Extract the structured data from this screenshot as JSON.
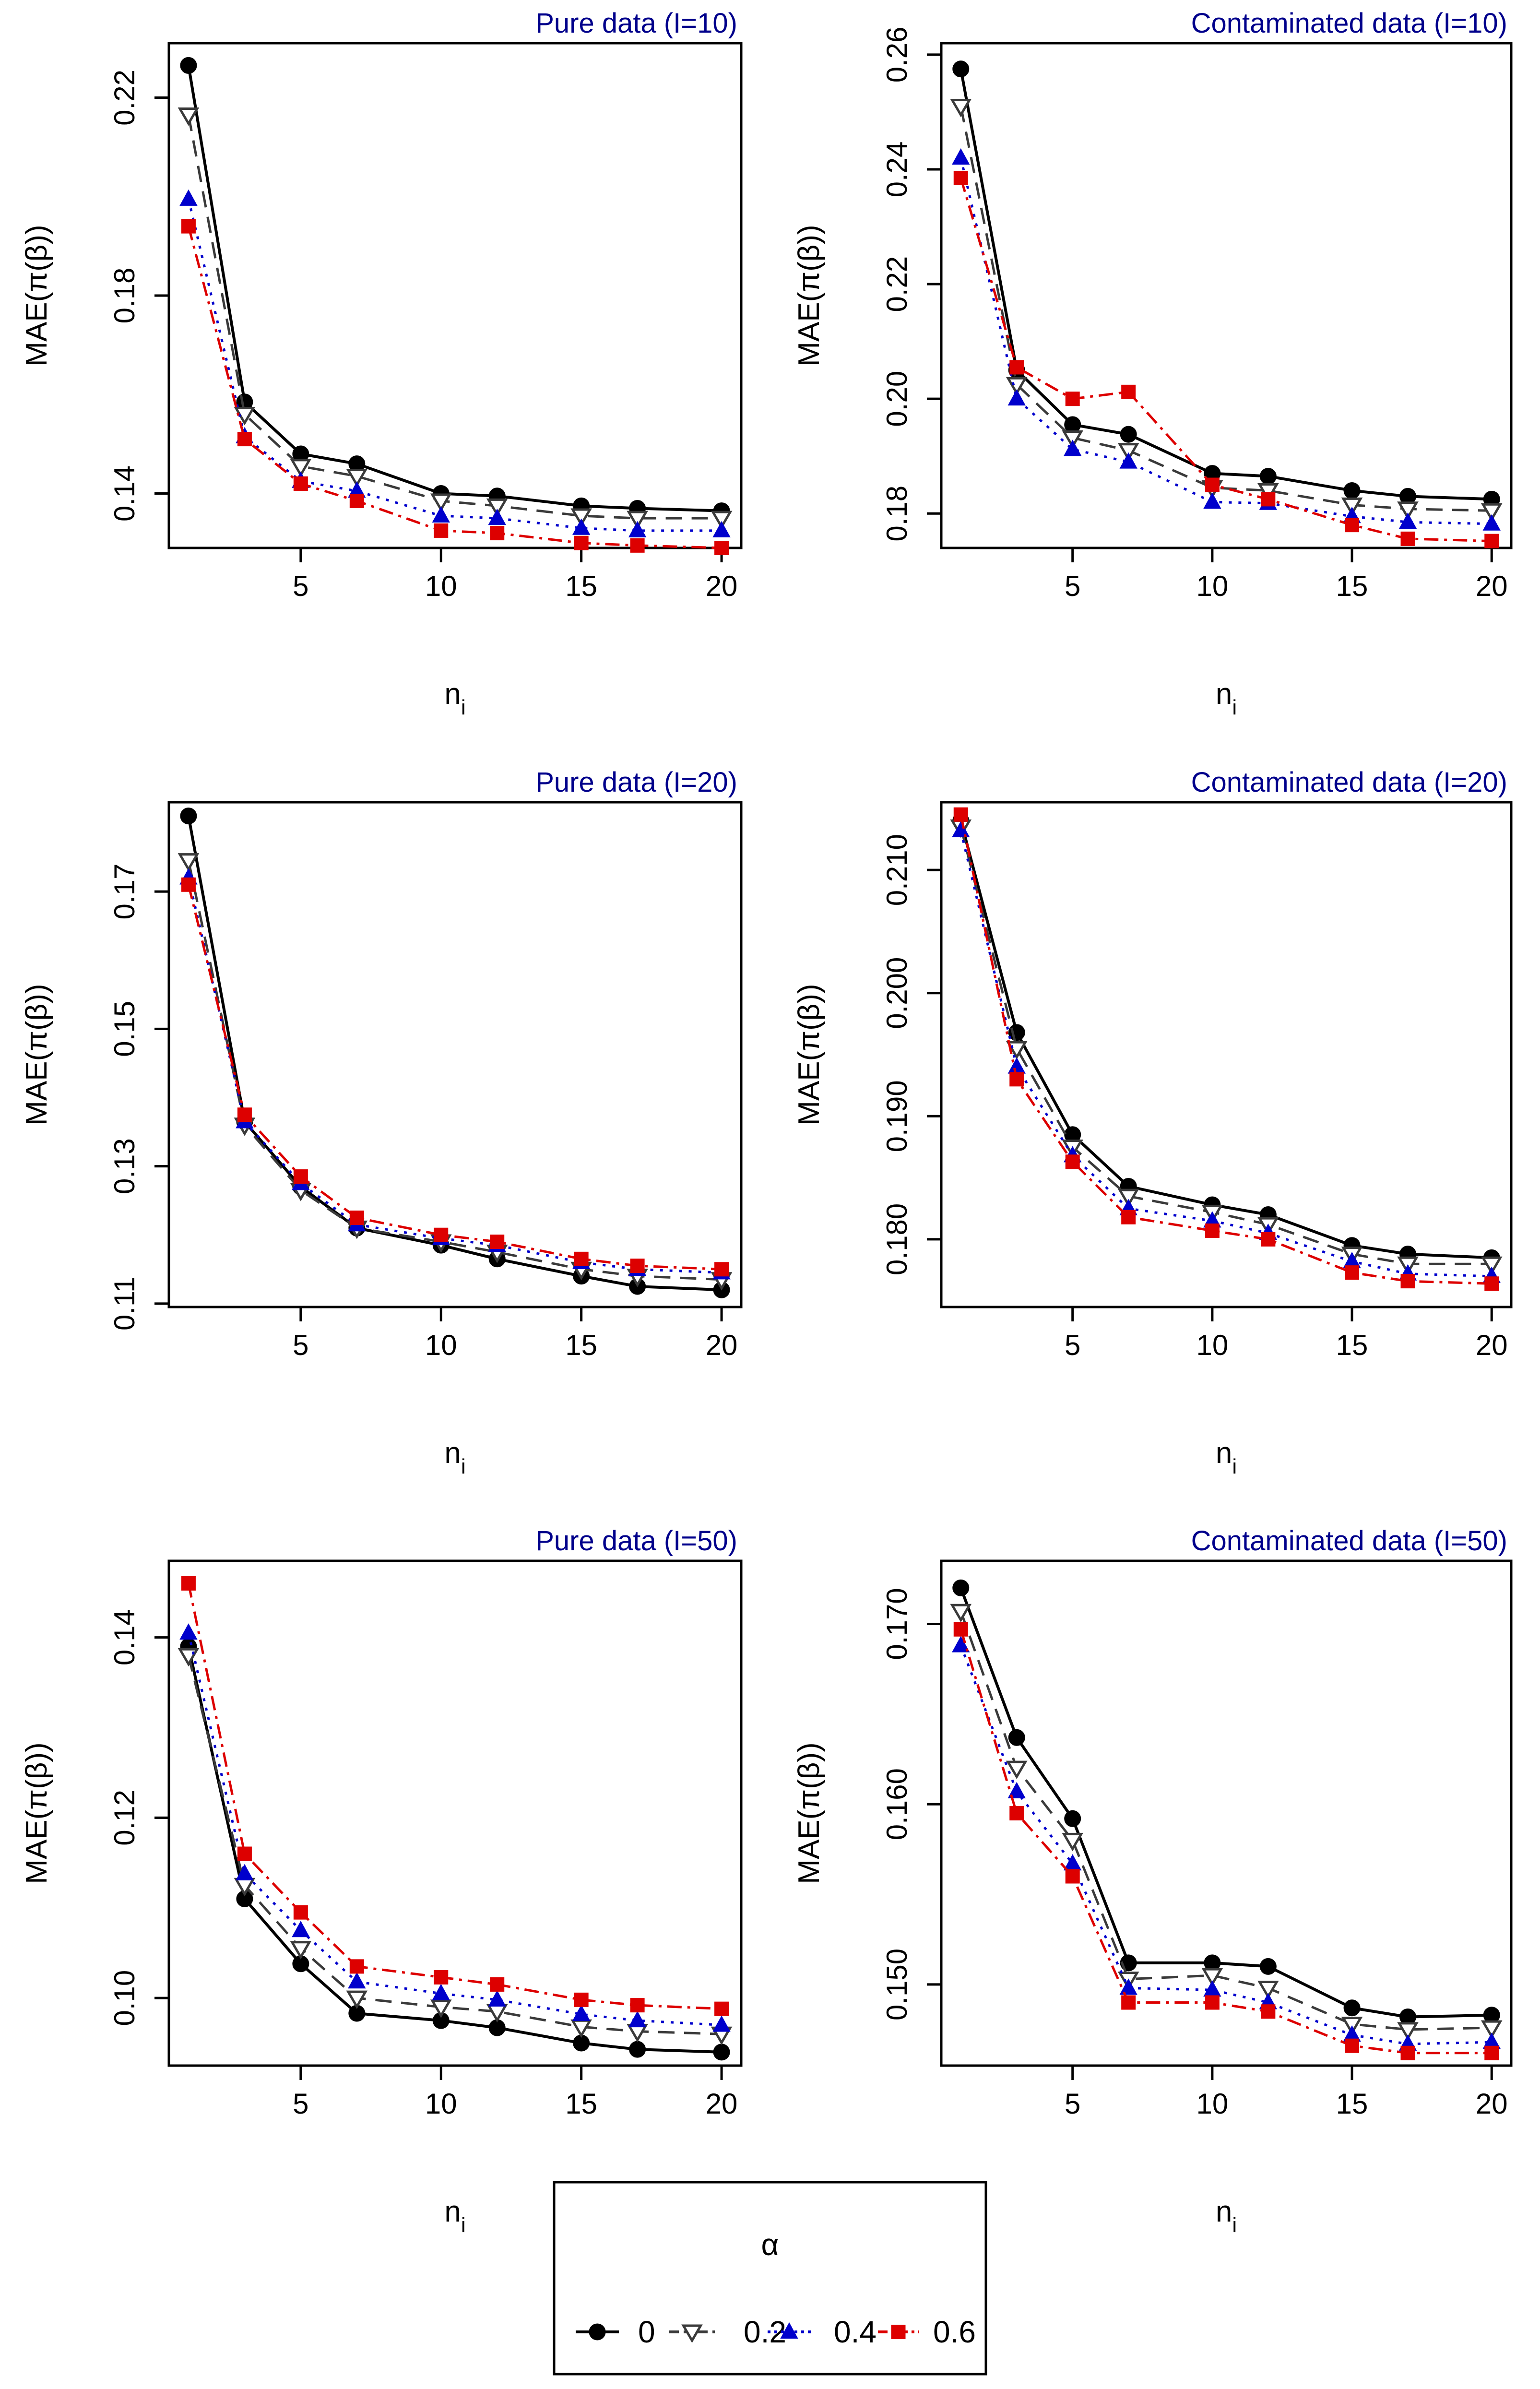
{
  "chart_data": [
    {
      "type": "line",
      "title": "Pure data (I=10)",
      "xlabel": "n",
      "xlabel_sub": "i",
      "ylabel": "MAE(π(β))",
      "xlim": [
        0.3,
        20.7
      ],
      "ylim": [
        0.129,
        0.231
      ],
      "xticks": [
        5,
        10,
        15,
        20
      ],
      "xtick_labels": [
        "5",
        "10",
        "15",
        "20"
      ],
      "yticks": [
        0.14,
        0.18,
        0.22
      ],
      "ytick_labels": [
        "0.14",
        "0.18",
        "0.22"
      ],
      "x": [
        1,
        3,
        5,
        7,
        10,
        12,
        15,
        17,
        20
      ],
      "series": [
        {
          "name": "0",
          "values": [
            0.2265,
            0.1585,
            0.148,
            0.146,
            0.14,
            0.1395,
            0.1375,
            0.137,
            0.1365
          ]
        },
        {
          "name": "0.2",
          "values": [
            0.2165,
            0.156,
            0.1455,
            0.1435,
            0.1385,
            0.1375,
            0.1355,
            0.135,
            0.135
          ]
        },
        {
          "name": "0.4",
          "values": [
            0.1995,
            0.1515,
            0.1425,
            0.1405,
            0.1355,
            0.135,
            0.133,
            0.1325,
            0.1325
          ]
        },
        {
          "name": "0.6",
          "values": [
            0.194,
            0.151,
            0.142,
            0.1385,
            0.1325,
            0.132,
            0.13,
            0.1295,
            0.129
          ]
        }
      ]
    },
    {
      "type": "line",
      "title": "Contaminated data (I=10)",
      "xlabel": "n",
      "xlabel_sub": "i",
      "ylabel": "MAE(π(β))",
      "xlim": [
        0.3,
        20.7
      ],
      "ylim": [
        0.174,
        0.262
      ],
      "xticks": [
        5,
        10,
        15,
        20
      ],
      "xtick_labels": [
        "5",
        "10",
        "15",
        "20"
      ],
      "yticks": [
        0.18,
        0.2,
        0.22,
        0.24,
        0.26
      ],
      "ytick_labels": [
        "0.18",
        "0.20",
        "0.22",
        "0.24",
        "0.26"
      ],
      "x": [
        1,
        3,
        5,
        7,
        10,
        12,
        15,
        17,
        20
      ],
      "series": [
        {
          "name": "0",
          "values": [
            0.2575,
            0.205,
            0.1955,
            0.1938,
            0.187,
            0.1865,
            0.184,
            0.183,
            0.1825
          ]
        },
        {
          "name": "0.2",
          "values": [
            0.251,
            0.2025,
            0.1932,
            0.191,
            0.1845,
            0.184,
            0.1815,
            0.1808,
            0.1805
          ]
        },
        {
          "name": "0.4",
          "values": [
            0.242,
            0.2,
            0.1912,
            0.189,
            0.182,
            0.1818,
            0.1795,
            0.1785,
            0.1782
          ]
        },
        {
          "name": "0.6",
          "values": [
            0.2385,
            0.2055,
            0.2,
            0.2012,
            0.185,
            0.1825,
            0.178,
            0.1756,
            0.1752
          ]
        }
      ]
    },
    {
      "type": "line",
      "title": "Pure data (I=20)",
      "xlabel": "n",
      "xlabel_sub": "i",
      "ylabel": "MAE(π(β))",
      "xlim": [
        0.3,
        20.7
      ],
      "ylim": [
        0.1095,
        0.183
      ],
      "xticks": [
        5,
        10,
        15,
        20
      ],
      "xtick_labels": [
        "5",
        "10",
        "15",
        "20"
      ],
      "yticks": [
        0.11,
        0.13,
        0.15,
        0.17
      ],
      "ytick_labels": [
        "0.11",
        "0.13",
        "0.15",
        "0.17"
      ],
      "x": [
        1,
        3,
        5,
        7,
        10,
        12,
        15,
        17,
        20
      ],
      "series": [
        {
          "name": "0",
          "values": [
            0.181,
            0.1365,
            0.127,
            0.121,
            0.1185,
            0.1165,
            0.114,
            0.1125,
            0.112
          ]
        },
        {
          "name": "0.2",
          "values": [
            0.1745,
            0.136,
            0.1265,
            0.121,
            0.119,
            0.1175,
            0.115,
            0.114,
            0.1135
          ]
        },
        {
          "name": "0.4",
          "values": [
            0.172,
            0.1365,
            0.1275,
            0.1215,
            0.1195,
            0.1185,
            0.116,
            0.115,
            0.1145
          ]
        },
        {
          "name": "0.6",
          "values": [
            0.171,
            0.1375,
            0.1285,
            0.1225,
            0.12,
            0.119,
            0.1165,
            0.1155,
            0.115
          ]
        }
      ]
    },
    {
      "type": "line",
      "title": "Contaminated data (I=20)",
      "xlabel": "n",
      "xlabel_sub": "i",
      "ylabel": "MAE(π(β))",
      "xlim": [
        0.3,
        20.7
      ],
      "ylim": [
        0.1745,
        0.2155
      ],
      "xticks": [
        5,
        10,
        15,
        20
      ],
      "xtick_labels": [
        "5",
        "10",
        "15",
        "20"
      ],
      "yticks": [
        0.18,
        0.19,
        0.2,
        0.21
      ],
      "ytick_labels": [
        "0.180",
        "0.190",
        "0.200",
        "0.210"
      ],
      "x": [
        1,
        3,
        5,
        7,
        10,
        12,
        15,
        17,
        20
      ],
      "series": [
        {
          "name": "0",
          "values": [
            0.214,
            0.1968,
            0.1885,
            0.1843,
            0.1828,
            0.182,
            0.1795,
            0.1788,
            0.1785
          ]
        },
        {
          "name": "0.2",
          "values": [
            0.2135,
            0.1955,
            0.1875,
            0.1835,
            0.1822,
            0.1812,
            0.1788,
            0.178,
            0.178
          ]
        },
        {
          "name": "0.4",
          "values": [
            0.2132,
            0.194,
            0.1868,
            0.1825,
            0.1815,
            0.1805,
            0.1782,
            0.1772,
            0.177
          ]
        },
        {
          "name": "0.6",
          "values": [
            0.2145,
            0.193,
            0.1863,
            0.1818,
            0.1807,
            0.18,
            0.1773,
            0.1766,
            0.1764
          ]
        }
      ]
    },
    {
      "type": "line",
      "title": "Pure data (I=50)",
      "xlabel": "n",
      "xlabel_sub": "i",
      "ylabel": "MAE(π(β))",
      "xlim": [
        0.3,
        20.7
      ],
      "ylim": [
        0.0925,
        0.1485
      ],
      "xticks": [
        5,
        10,
        15,
        20
      ],
      "xtick_labels": [
        "5",
        "10",
        "15",
        "20"
      ],
      "yticks": [
        0.1,
        0.12,
        0.14
      ],
      "ytick_labels": [
        "0.10",
        "0.12",
        "0.14"
      ],
      "x": [
        1,
        3,
        5,
        7,
        10,
        12,
        15,
        17,
        20
      ],
      "series": [
        {
          "name": "0",
          "values": [
            0.139,
            0.111,
            0.1038,
            0.0983,
            0.0975,
            0.0967,
            0.095,
            0.0943,
            0.094
          ]
        },
        {
          "name": "0.2",
          "values": [
            0.138,
            0.1125,
            0.1055,
            0.1,
            0.099,
            0.0985,
            0.0968,
            0.0963,
            0.096
          ]
        },
        {
          "name": "0.4",
          "values": [
            0.1405,
            0.1138,
            0.1075,
            0.1018,
            0.1005,
            0.0998,
            0.0982,
            0.0975,
            0.097
          ]
        },
        {
          "name": "0.6",
          "values": [
            0.146,
            0.116,
            0.1095,
            0.1035,
            0.1023,
            0.1015,
            0.0998,
            0.0992,
            0.0988
          ]
        }
      ]
    },
    {
      "type": "line",
      "title": "Contaminated data (I=50)",
      "xlabel": "n",
      "xlabel_sub": "i",
      "ylabel": "MAE(π(β))",
      "xlim": [
        0.3,
        20.7
      ],
      "ylim": [
        0.1455,
        0.1735
      ],
      "xticks": [
        5,
        10,
        15,
        20
      ],
      "xtick_labels": [
        "5",
        "10",
        "15",
        "20"
      ],
      "yticks": [
        0.15,
        0.16,
        0.17
      ],
      "ytick_labels": [
        "0.150",
        "0.160",
        "0.170"
      ],
      "x": [
        1,
        3,
        5,
        7,
        10,
        12,
        15,
        17,
        20
      ],
      "series": [
        {
          "name": "0",
          "values": [
            0.172,
            0.1637,
            0.1592,
            0.1512,
            0.1512,
            0.151,
            0.1487,
            0.1482,
            0.1483
          ]
        },
        {
          "name": "0.2",
          "values": [
            0.1707,
            0.162,
            0.158,
            0.1503,
            0.1505,
            0.1498,
            0.1478,
            0.1475,
            0.1476
          ]
        },
        {
          "name": "0.4",
          "values": [
            0.1688,
            0.1607,
            0.1567,
            0.1498,
            0.1497,
            0.149,
            0.1472,
            0.1467,
            0.1468
          ]
        },
        {
          "name": "0.6",
          "values": [
            0.1697,
            0.1595,
            0.156,
            0.149,
            0.149,
            0.1485,
            0.1466,
            0.1462,
            0.1462
          ]
        }
      ]
    }
  ],
  "legend": {
    "title": "α",
    "position": "bottom-center",
    "entries": [
      "0",
      "0.2",
      "0.4",
      "0.6"
    ]
  },
  "styles": {
    "series_colors": [
      "#000000",
      "#3a3a3a",
      "#0000cc",
      "#dd0000"
    ],
    "title_color": "#00008b",
    "axis_color": "#000000"
  }
}
